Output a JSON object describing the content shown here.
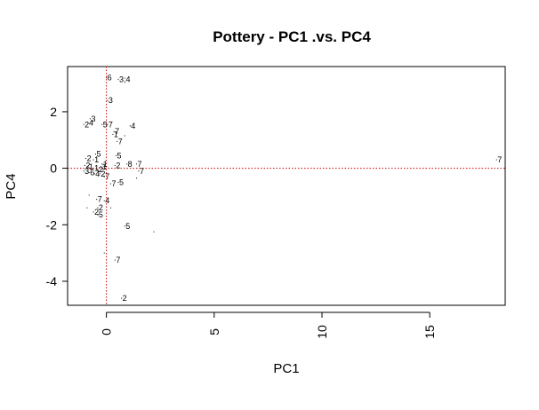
{
  "chart_data": {
    "type": "scatter",
    "title": "Pottery - PC1 .vs. PC4",
    "xlabel": "PC1",
    "ylabel": "PC4",
    "xlim": [
      -1.8,
      18.5
    ],
    "ylim": [
      -4.85,
      3.6
    ],
    "xticks": [
      0,
      5,
      10,
      15
    ],
    "yticks": [
      -4,
      -2,
      0,
      2
    ],
    "reference_lines": {
      "x": 0,
      "y": 0,
      "color": "#cc0000",
      "style": "dotted"
    },
    "points": [
      {
        "x": 0.0,
        "y": 3.2,
        "label": "6"
      },
      {
        "x": 0.55,
        "y": 3.15,
        "label": "3;4"
      },
      {
        "x": 0.05,
        "y": 2.4,
        "label": "3"
      },
      {
        "x": -0.75,
        "y": 1.75,
        "label": "3"
      },
      {
        "x": -1.05,
        "y": 1.55,
        "label": "2"
      },
      {
        "x": -0.85,
        "y": 1.6,
        "label": "4"
      },
      {
        "x": -0.2,
        "y": 1.55,
        "label": "5"
      },
      {
        "x": 0.05,
        "y": 1.55,
        "label": "7"
      },
      {
        "x": 1.1,
        "y": 1.5,
        "label": "4"
      },
      {
        "x": 0.35,
        "y": 1.3,
        "label": "7"
      },
      {
        "x": 0.3,
        "y": 1.2,
        "label": "1"
      },
      {
        "x": 0.5,
        "y": 0.95,
        "label": "7"
      },
      {
        "x": 0.85,
        "y": 1.15,
        "label": ""
      },
      {
        "x": -0.5,
        "y": 0.5,
        "label": "5"
      },
      {
        "x": 0.45,
        "y": 0.45,
        "label": "5"
      },
      {
        "x": -0.95,
        "y": 0.35,
        "label": "2"
      },
      {
        "x": -0.6,
        "y": 0.3,
        "label": "1"
      },
      {
        "x": -0.2,
        "y": 0.15,
        "label": "1"
      },
      {
        "x": 0.4,
        "y": 0.1,
        "label": "2"
      },
      {
        "x": 0.95,
        "y": 0.15,
        "label": "8"
      },
      {
        "x": 1.4,
        "y": 0.15,
        "label": "7"
      },
      {
        "x": 1.5,
        "y": -0.1,
        "label": "7"
      },
      {
        "x": -1.0,
        "y": 0.1,
        "label": "2"
      },
      {
        "x": -0.85,
        "y": 0.05,
        "label": "1"
      },
      {
        "x": -0.6,
        "y": 0.0,
        "label": "1"
      },
      {
        "x": -0.4,
        "y": -0.05,
        "label": "2"
      },
      {
        "x": -0.25,
        "y": 0.05,
        "label": "1"
      },
      {
        "x": -1.05,
        "y": -0.1,
        "label": "3"
      },
      {
        "x": -0.8,
        "y": -0.15,
        "label": "6"
      },
      {
        "x": -0.55,
        "y": -0.2,
        "label": "4"
      },
      {
        "x": -0.3,
        "y": -0.2,
        "label": "2"
      },
      {
        "x": -0.1,
        "y": -0.3,
        "label": "7"
      },
      {
        "x": 0.2,
        "y": -0.55,
        "label": "7"
      },
      {
        "x": 0.55,
        "y": -0.5,
        "label": "5"
      },
      {
        "x": 1.4,
        "y": -0.35,
        "label": ""
      },
      {
        "x": -0.45,
        "y": -1.1,
        "label": "7"
      },
      {
        "x": -0.1,
        "y": -1.15,
        "label": "4"
      },
      {
        "x": -0.8,
        "y": -0.95,
        "label": ""
      },
      {
        "x": -0.4,
        "y": -1.4,
        "label": "2"
      },
      {
        "x": -0.6,
        "y": -1.55,
        "label": "2"
      },
      {
        "x": -0.4,
        "y": -1.65,
        "label": "5"
      },
      {
        "x": -0.9,
        "y": -1.4,
        "label": ""
      },
      {
        "x": 0.2,
        "y": -1.4,
        "label": ""
      },
      {
        "x": 0.85,
        "y": -2.05,
        "label": "5"
      },
      {
        "x": 2.2,
        "y": -2.25,
        "label": ""
      },
      {
        "x": 0.4,
        "y": -3.25,
        "label": "7"
      },
      {
        "x": -0.1,
        "y": -3.0,
        "label": ""
      },
      {
        "x": 0.7,
        "y": -4.6,
        "label": "2"
      },
      {
        "x": 18.1,
        "y": 0.3,
        "label": "7"
      }
    ]
  }
}
